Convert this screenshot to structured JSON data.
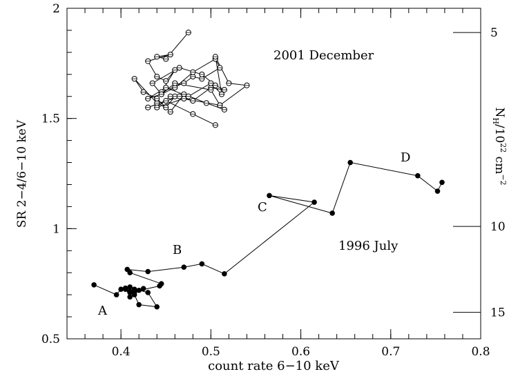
{
  "chart_data": {
    "type": "scatter",
    "xlabel": "count rate 6−10 keV",
    "ylabel": "SR 2−4/6−10 keV",
    "xlim": [
      0.34,
      0.8
    ],
    "ylim": [
      0.5,
      2.0
    ],
    "x_ticks": [
      "0.4",
      "0.5",
      "0.6",
      "0.7",
      "0.8"
    ],
    "y_ticks": [
      "0.5",
      "1",
      "1.5",
      "2"
    ],
    "right_axis": {
      "label_main": "N",
      "label_sub": "H",
      "label_rest": "/10",
      "label_exp": "22",
      "label_unit": " cm",
      "label_unit_exp": "−2",
      "ticks": [
        {
          "label": "5",
          "sr": 1.89
        },
        {
          "label": "10",
          "sr": 1.01
        },
        {
          "label": "15",
          "sr": 0.62
        }
      ]
    },
    "annotations": {
      "epoch_2001": "2001 December",
      "epoch_1996": "1996 July",
      "point_A": "A",
      "point_B": "B",
      "point_C": "C",
      "point_D": "D"
    },
    "series": [
      {
        "marker": "filled",
        "x": [
          0.37,
          0.395,
          0.4,
          0.41,
          0.405,
          0.41,
          0.42,
          0.425,
          0.415,
          0.405,
          0.41,
          0.415,
          0.42,
          0.44,
          0.43,
          0.415,
          0.41,
          0.443,
          0.445,
          0.41,
          0.407,
          0.43,
          0.47,
          0.49,
          0.515,
          0.615,
          0.565,
          0.635,
          0.655,
          0.73,
          0.752,
          0.757
        ],
        "y": [
          0.745,
          0.7,
          0.725,
          0.715,
          0.725,
          0.735,
          0.72,
          0.728,
          0.71,
          0.73,
          0.69,
          0.7,
          0.655,
          0.645,
          0.71,
          0.725,
          0.71,
          0.74,
          0.75,
          0.8,
          0.815,
          0.805,
          0.825,
          0.84,
          0.795,
          1.12,
          1.15,
          1.07,
          1.3,
          1.24,
          1.17,
          1.21
        ]
      },
      {
        "marker": "open",
        "x": [
          0.475,
          0.45,
          0.44,
          0.455,
          0.43,
          0.44,
          0.45,
          0.46,
          0.445,
          0.47,
          0.48,
          0.49,
          0.51,
          0.505,
          0.48,
          0.46,
          0.445,
          0.435,
          0.465,
          0.49,
          0.505,
          0.515,
          0.5,
          0.48,
          0.46,
          0.45,
          0.44,
          0.415,
          0.425,
          0.44,
          0.455,
          0.47,
          0.495,
          0.515,
          0.51,
          0.5,
          0.46,
          0.445,
          0.43,
          0.45,
          0.475,
          0.5,
          0.512,
          0.505,
          0.52,
          0.54,
          0.51,
          0.47,
          0.44,
          0.455,
          0.465,
          0.43,
          0.45,
          0.48,
          0.505
        ],
        "y": [
          1.89,
          1.77,
          1.78,
          1.79,
          1.76,
          1.69,
          1.67,
          1.72,
          1.62,
          1.66,
          1.69,
          1.68,
          1.73,
          1.77,
          1.71,
          1.64,
          1.61,
          1.66,
          1.73,
          1.7,
          1.65,
          1.63,
          1.64,
          1.58,
          1.6,
          1.55,
          1.57,
          1.68,
          1.62,
          1.59,
          1.53,
          1.61,
          1.57,
          1.54,
          1.56,
          1.63,
          1.66,
          1.61,
          1.59,
          1.64,
          1.6,
          1.66,
          1.61,
          1.78,
          1.66,
          1.65,
          1.56,
          1.59,
          1.55,
          1.6,
          1.6,
          1.55,
          1.58,
          1.52,
          1.47
        ]
      }
    ]
  }
}
